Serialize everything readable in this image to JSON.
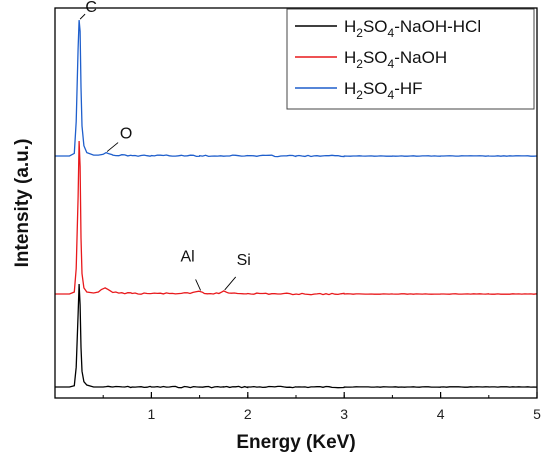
{
  "chart_data": {
    "type": "line",
    "title": "",
    "xlabel": "Energy (KeV)",
    "ylabel": "Intensity (a.u.)",
    "xlim": [
      0,
      5
    ],
    "xticks": [
      1,
      2,
      3,
      4,
      5
    ],
    "y_ticks_shown": false,
    "grid": false,
    "legend_position": "top-right",
    "series": [
      {
        "name": "H2SO4-NaOH-HCl",
        "name_parts": [
          "H",
          "2",
          "SO",
          "4",
          "-NaOH-HCl"
        ],
        "color": "#000000",
        "x": [
          0.0,
          0.1,
          0.15,
          0.2,
          0.22,
          0.24,
          0.25,
          0.26,
          0.27,
          0.28,
          0.3,
          0.33,
          0.4,
          0.5,
          0.55,
          0.6,
          0.8,
          1.0,
          1.5,
          1.75,
          2.0,
          2.5,
          3.0,
          3.5,
          4.0,
          4.5,
          5.0
        ],
        "y": [
          0.0,
          0.0,
          0.0,
          0.01,
          0.15,
          0.55,
          0.78,
          0.62,
          0.3,
          0.12,
          0.04,
          0.015,
          0.0,
          0.0,
          0.005,
          0.0,
          0.0,
          0.0,
          0.0,
          0.0,
          0.0,
          0.0,
          0.0,
          0.0,
          0.0,
          0.0,
          0.0
        ]
      },
      {
        "name": "H2SO4-NaOH",
        "name_parts": [
          "H",
          "2",
          "SO",
          "4",
          "-NaOH"
        ],
        "color": "#e8191c",
        "x": [
          0.0,
          0.1,
          0.15,
          0.2,
          0.22,
          0.24,
          0.25,
          0.26,
          0.27,
          0.28,
          0.3,
          0.33,
          0.4,
          0.45,
          0.52,
          0.55,
          0.6,
          0.8,
          1.0,
          1.4,
          1.5,
          1.55,
          1.7,
          1.75,
          1.8,
          2.0,
          2.5,
          3.0,
          3.5,
          4.0,
          4.5,
          5.0
        ],
        "y": [
          0.0,
          0.0,
          0.0,
          0.02,
          0.25,
          0.95,
          1.5,
          1.25,
          0.55,
          0.2,
          0.06,
          0.02,
          0.01,
          0.02,
          0.06,
          0.045,
          0.015,
          0.005,
          0.005,
          0.005,
          0.025,
          0.005,
          0.005,
          0.03,
          0.01,
          0.005,
          0.0,
          0.0,
          0.0,
          0.0,
          0.0,
          0.0
        ]
      },
      {
        "name": "H2SO4-HF",
        "name_parts": [
          "H",
          "2",
          "SO",
          "4",
          "-HF"
        ],
        "color": "#1f5fcc",
        "x": [
          0.0,
          0.1,
          0.15,
          0.2,
          0.22,
          0.24,
          0.25,
          0.26,
          0.27,
          0.28,
          0.3,
          0.33,
          0.4,
          0.45,
          0.5,
          0.53,
          0.56,
          0.6,
          0.8,
          1.0,
          1.5,
          2.0,
          2.5,
          3.0,
          3.5,
          4.0,
          4.5,
          5.0
        ],
        "y": [
          0.0,
          0.0,
          0.0,
          0.03,
          0.4,
          1.25,
          1.58,
          1.45,
          0.8,
          0.35,
          0.12,
          0.04,
          0.01,
          0.01,
          0.02,
          0.04,
          0.025,
          0.01,
          0.005,
          0.005,
          0.003,
          0.003,
          0.0,
          0.0,
          0.0,
          0.0,
          0.0,
          0.0
        ]
      }
    ],
    "annotations": [
      {
        "text": "C",
        "series": 2,
        "x": 0.25,
        "leader": true
      },
      {
        "text": "O",
        "series": 2,
        "x": 0.53,
        "leader": true
      },
      {
        "text": "Al",
        "series": 1,
        "x": 1.5,
        "leader": true
      },
      {
        "text": "Si",
        "series": 1,
        "x": 1.75,
        "leader": true
      }
    ]
  }
}
